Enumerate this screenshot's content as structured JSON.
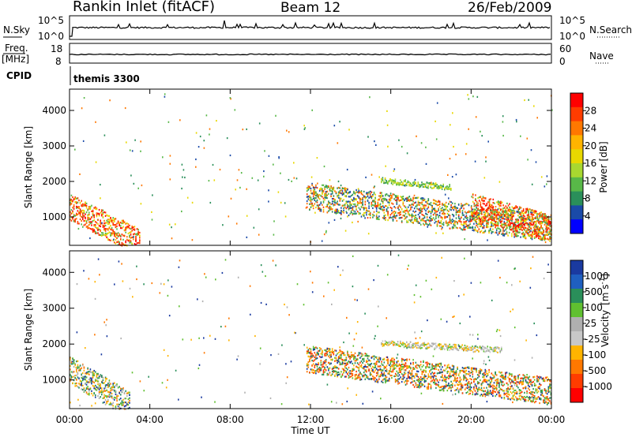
{
  "header": {
    "station": "Rankin Inlet (fitACF)",
    "beam": "Beam 12",
    "date": "26/Feb/2009"
  },
  "noise_panel": {
    "left_label": "N.Sky",
    "right_label": "N.Search",
    "left_ticks": [
      "10^5",
      "10^0"
    ],
    "right_ticks": [
      "10^5",
      "10^0"
    ]
  },
  "freq_panel": {
    "left_label_line1": "Freq.",
    "left_label_line2": "[MHz]",
    "right_label": "Nave",
    "left_ticks": [
      "18",
      "8"
    ],
    "right_ticks": [
      "60",
      "0"
    ]
  },
  "cpid_panel": {
    "label": "CPID",
    "value": "themis 3300"
  },
  "time_axis": {
    "label": "Time UT",
    "ticks": [
      "00:00",
      "04:00",
      "08:00",
      "12:00",
      "16:00",
      "20:00",
      "00:00"
    ]
  },
  "chart_data": [
    {
      "type": "heatmap",
      "name": "power",
      "ylabel": "Slant Range [km]",
      "yticks": [
        1000,
        2000,
        3000,
        4000
      ],
      "ylim": [
        200,
        4600
      ],
      "xlim_hours": [
        0,
        24
      ],
      "colorbar": {
        "label": "Power [dB]",
        "ticks": [
          "28",
          "24",
          "20",
          "16",
          "12",
          "8",
          "4"
        ],
        "colors": [
          "#ff0000",
          "#ff3c00",
          "#ff7800",
          "#ffb400",
          "#e8d800",
          "#a8d830",
          "#58b848",
          "#2a8f5a",
          "#1a4aa8",
          "#0000ff"
        ]
      },
      "features": [
        {
          "t_start": 0.0,
          "t_end": 3.5,
          "range_start": 1300,
          "range_end": 300,
          "level": "high"
        },
        {
          "t_start": 11.8,
          "t_end": 24.0,
          "range_start": 1600,
          "range_end": 700,
          "level": "mid"
        },
        {
          "t_start": 20.0,
          "t_end": 24.0,
          "range_start": 1300,
          "range_end": 700,
          "level": "high"
        },
        {
          "t_start": 15.5,
          "t_end": 19.0,
          "range_start": 2050,
          "range_end": 1850,
          "level": "low"
        }
      ]
    },
    {
      "type": "heatmap",
      "name": "velocity",
      "ylabel": "Slant Range [km]",
      "yticks": [
        1000,
        2000,
        3000,
        4000
      ],
      "ylim": [
        200,
        4600
      ],
      "xlim_hours": [
        0,
        24
      ],
      "colorbar": {
        "label_main": "Velocity",
        "label_unit": "[m s",
        "label_exp": "-1",
        "label_close": "]",
        "ticks": [
          "1000",
          "500",
          "100",
          "25",
          "-25",
          "-100",
          "-500",
          "-1000"
        ],
        "colors": [
          "#1a3aa0",
          "#1f5fc0",
          "#2a8f5a",
          "#60c030",
          "#b0b0b0",
          "#c8c8c8",
          "#ffb400",
          "#ff7800",
          "#ff3c00",
          "#ff0000"
        ]
      },
      "features": [
        {
          "t_start": 0.0,
          "t_end": 3.0,
          "range_start": 1300,
          "range_end": 300,
          "level": "mixed"
        },
        {
          "t_start": 11.8,
          "t_end": 24.0,
          "range_start": 1600,
          "range_end": 700,
          "level": "negative"
        },
        {
          "t_start": 15.5,
          "t_end": 21.5,
          "range_start": 2050,
          "range_end": 1850,
          "level": "near-zero"
        }
      ]
    }
  ]
}
